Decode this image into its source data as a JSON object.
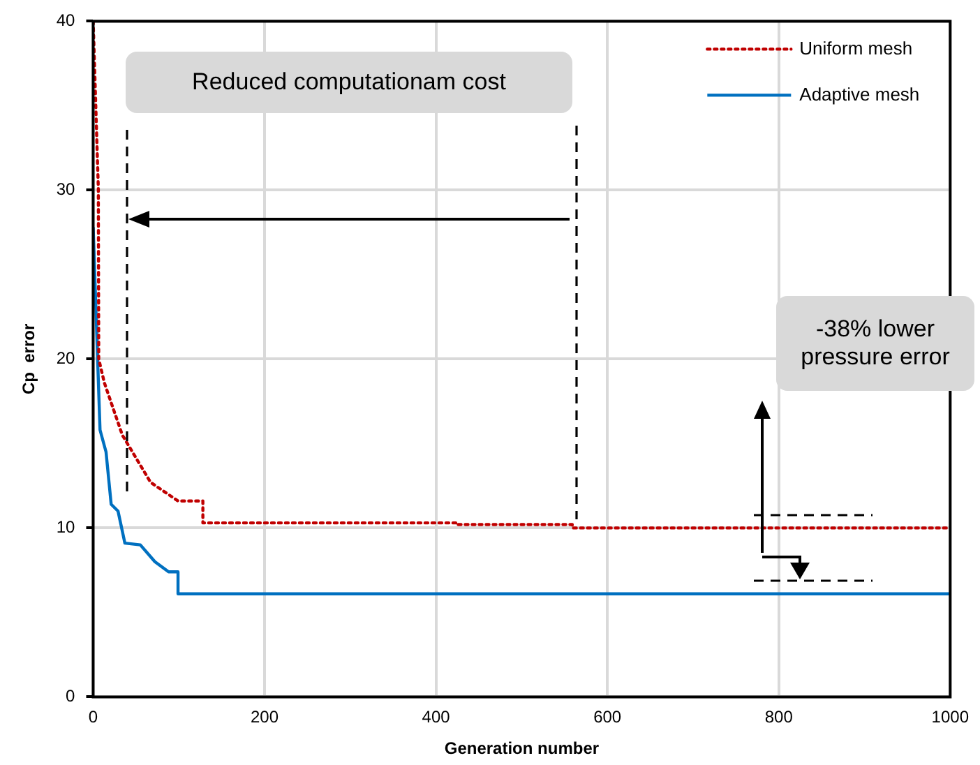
{
  "chart_data": {
    "type": "line",
    "xlabel": "Generation number",
    "ylabel": "Cp  error",
    "xlim": [
      0,
      1000
    ],
    "xticks": [
      0,
      200,
      400,
      600,
      800,
      1000
    ],
    "ylim": [
      0,
      40
    ],
    "yticks": [
      0,
      10,
      20,
      30,
      40
    ],
    "grid": true,
    "legend": "top right",
    "marker": "none",
    "annotations": [
      "Reduced computationam cost",
      "-38% lower pressure error"
    ],
    "series": [
      {
        "name": "Uniform mesh",
        "color": "#c00000",
        "line_style": "dotted",
        "x": [
          0,
          6,
          6.5,
          13,
          34,
          67,
          99,
          128,
          128,
          424,
          424,
          559,
          559,
          1000
        ],
        "values": [
          40,
          30.1,
          20,
          18.6,
          15.5,
          12.7,
          11.6,
          11.6,
          10.3,
          10.3,
          10.2,
          10.2,
          10,
          10
        ]
      },
      {
        "name": "Adaptive mesh",
        "color": "#0070c0",
        "line_style": "solid",
        "x": [
          0,
          6.5,
          8,
          15,
          21,
          29,
          37,
          55,
          72,
          88,
          99,
          99,
          1000
        ],
        "values": [
          27.8,
          18,
          15.8,
          14.5,
          11.4,
          11,
          9.1,
          9,
          8,
          7.4,
          7.4,
          6.1,
          6.1
        ]
      }
    ]
  }
}
